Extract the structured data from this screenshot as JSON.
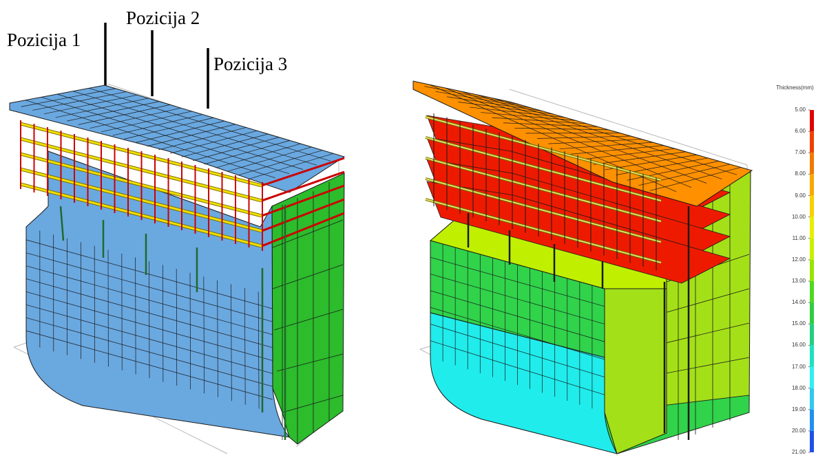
{
  "labels": {
    "pos1": "Pozicija 1",
    "pos2": "Pozicija 2",
    "pos3": "Pozicija 3"
  },
  "legend": {
    "title": "Thickness(mm)",
    "ticks": [
      "5.00",
      "6.00",
      "7.00",
      "8.00",
      "9.00",
      "10.00",
      "11.00",
      "12.00",
      "13.00",
      "14.00",
      "15.00",
      "16.00",
      "17.00",
      "18.00",
      "19.00",
      "20.00",
      "21.00"
    ],
    "colors": [
      "#e00000",
      "#f04000",
      "#f07a00",
      "#f8a800",
      "#f8d000",
      "#e8ee00",
      "#c8f000",
      "#98e400",
      "#50d820",
      "#30cc40",
      "#20d080",
      "#20e0c0",
      "#30f0f0",
      "#30c8f0",
      "#2090f0",
      "#2050e8",
      "#1010d8"
    ]
  },
  "palette": {
    "uniform_fill": "#6aa8e0",
    "side_fill": "#2cbc2c",
    "frame_red": "#cc0000",
    "frame_yellow": "#f0e000",
    "mesh_line": "#1a1a1a",
    "left_deck": "#60d2f2",
    "left_side": "#98e81e",
    "top_deck": "#ff9000",
    "inner_deck": "#ee1a00",
    "mid_band": "#c0f000",
    "lower_band": "#30d34a",
    "bottom_band": "#20ecec",
    "right_side": "#a4e018",
    "keel": "#30d34a"
  }
}
